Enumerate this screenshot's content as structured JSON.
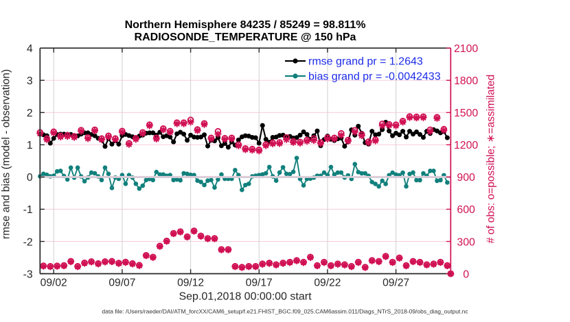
{
  "colors": {
    "background": "#ffffff",
    "rmse_line": "#000000",
    "bias_line": "#11807c",
    "obs_marker": "#d01053",
    "right_axis": "#d01053",
    "legend_text": "#1c2be8",
    "grid_horizontal": "#f7cfdf",
    "grid_vertical": "#d4d4d4",
    "zero_line": "#c9cbd3",
    "axis_color": "#262626",
    "title_color": "#000000",
    "footer_color": "#333333"
  },
  "chart_data": {
    "type": "line",
    "title": "Northern Hemisphere 84235 / 85249 = 98.811%",
    "subtitle": "RADIOSONDE_TEMPERATURE @ 150 hPa",
    "xlabel": "Sep.01,2018 00:00:00 start",
    "ylabel_left": "rmse and bias (model - observation)",
    "ylabel_right": "# of obs: o=possible; ∗=assimilated",
    "footer": "data file: /Users/raeder/DAI/ATM_forcXX/CAM6_setup/f.e21.FHIST_BGC.f09_025.CAM6assim.011/Diags_NTrS_2018-09/obs_diag_output.nc",
    "grid": true,
    "legend_position": "top-right-inside",
    "bins_total": 121,
    "bin_hours": 6,
    "x_axis": {
      "tick_labels": [
        "09/02",
        "09/07",
        "09/12",
        "09/17",
        "09/22",
        "09/27"
      ],
      "tick_bins": [
        4,
        24,
        44,
        64,
        84,
        104
      ],
      "xlim_bins": [
        0,
        120
      ]
    },
    "y_axis_left": {
      "tick_labels": [
        "-3",
        "-2",
        "-1",
        "0",
        "1",
        "2",
        "3",
        "4"
      ],
      "tick_values": [
        -3,
        -2,
        -1,
        0,
        1,
        2,
        3,
        4
      ],
      "ylim": [
        -3,
        4
      ]
    },
    "y_axis_right": {
      "tick_labels": [
        "0",
        "300",
        "600",
        "900",
        "1200",
        "1500",
        "1800",
        "2100"
      ],
      "tick_values": [
        0,
        300,
        600,
        900,
        1200,
        1500,
        1800,
        2100
      ],
      "ylim": [
        0,
        2100
      ]
    },
    "legend": [
      {
        "label": "rmse grand pr = 1.2643",
        "series": "rmse"
      },
      {
        "label": "bias grand pr = -0.0042433",
        "series": "bias"
      }
    ],
    "series": [
      {
        "name": "rmse",
        "axis": "left",
        "style": "line-dot",
        "values": [
          1.33,
          1.31,
          1.28,
          1.05,
          1.2,
          1.32,
          1.33,
          1.33,
          1.325,
          1.32,
          1.29,
          1.275,
          1.33,
          1.37,
          1.37,
          1.32,
          1.28,
          1.2,
          1.15,
          0.95,
          1.19,
          1.02,
          1.12,
          1.02,
          1.285,
          1.32,
          1.285,
          1.25,
          1.19,
          1.27,
          1.3,
          1.36,
          1.37,
          1.37,
          1.3,
          1.39,
          1.25,
          1.28,
          1.24,
          1.09,
          1.34,
          1.39,
          1.33,
          1.14,
          1.3,
          1.24,
          1.23,
          1.24,
          1.31,
          0.96,
          1.14,
          1.12,
          1.22,
          0.97,
          1.04,
          0.925,
          1.09,
          0.99,
          1.15,
          1.245,
          1.28,
          1.27,
          1.23,
          1.22,
          1.05,
          1.6,
          1.17,
          1.08,
          1.23,
          1.24,
          1.29,
          1.3,
          1.24,
          1.26,
          1.21,
          1.225,
          1.3,
          1.4,
          1.32,
          1.17,
          1.28,
          1.43,
          0.97,
          1.16,
          1.27,
          1.17,
          1.13,
          1.185,
          1.21,
          0.955,
          1.1,
          1.465,
          1.3,
          1.575,
          1.36,
          1.065,
          1.02,
          1.42,
          1.31,
          1.33,
          1.47,
          1.7,
          1.43,
          1.28,
          1.36,
          1.31,
          1.42,
          1.24,
          1.42,
          1.33,
          1.4,
          1.32,
          1.23,
          1.42,
          1.35,
          1.47,
          1.43,
          1.37,
          1.41,
          1.22,
          null
        ]
      },
      {
        "name": "bias",
        "axis": "left",
        "style": "line-dot",
        "values": [
          0.02,
          0.1,
          0.067,
          0.02,
          0.04,
          0.175,
          0.19,
          0.03,
          -0.075,
          0.29,
          -0.02,
          0.29,
          0.02,
          -0.13,
          -0.017,
          0.137,
          0.117,
          0.02,
          -0.094,
          0.29,
          0.098,
          -0.34,
          -0.017,
          -0.056,
          0.06,
          -0.21,
          0.06,
          -0.017,
          -0.21,
          -0.36,
          -0.27,
          -0.094,
          -0.063,
          -0.094,
          0.156,
          0.079,
          0.079,
          0.04,
          0.06,
          -0.094,
          -0.075,
          -0.102,
          0.117,
          0.098,
          0.067,
          0.06,
          -0.113,
          -0.152,
          -0.248,
          -0.113,
          -0.094,
          -0.325,
          -0.075,
          0.079,
          -0.056,
          -0.056,
          -0.056,
          0.213,
          0.06,
          -0.4,
          -0.25,
          -0.21,
          0.02,
          0.04,
          0.06,
          0.08,
          0.117,
          0.31,
          0.02,
          -0.113,
          0.14,
          0.3,
          0.1,
          0.09,
          0.16,
          0.59,
          -0.06,
          -0.26,
          -0.06,
          -0.05,
          -0.02,
          0.04,
          0.04,
          0.137,
          0.06,
          0.31,
          0.079,
          0.137,
          0.137,
          -0.017,
          0.05,
          -0.06,
          0.4,
          0.153,
          0.114,
          0.114,
          0.037,
          -0.156,
          -0.214,
          -0.291,
          -0.118,
          -0.214,
          0.056,
          0.134,
          0.076,
          0.056,
          0.134,
          -0.29,
          0.095,
          0.14,
          -0.098,
          -0.098,
          0.114,
          0.037,
          0.19,
          0.19,
          -0.118,
          -0.098,
          0.056,
          -0.17,
          null
        ]
      },
      {
        "name": "obs_assimilated",
        "axis": "right",
        "style": "asterisk",
        "values": [
          1305,
          70,
          1248,
          65,
          1311,
          69,
          1273,
          73,
          1278,
          112,
          1269,
          65,
          1326,
          97,
          1258,
          109,
          1330,
          91,
          1248,
          109,
          1273,
          112,
          1248,
          95,
          1318,
          105,
          1204,
          91,
          1251,
          75,
          1305,
          167,
          1377,
          151,
          1254,
          254,
          1339,
          301,
          1317,
          372,
          1396,
          388,
          1396,
          341,
          1411,
          395,
          1332,
          348,
          1389,
          325,
          1254,
          325,
          1300,
          222,
          1251,
          222,
          1254,
          65,
          1191,
          57,
          1155,
          65,
          1150,
          65,
          1143,
          88,
          1192,
          96,
          1209,
          81,
          1212,
          96,
          1248,
          104,
          1222,
          120,
          1216,
          104,
          1234,
          151,
          1240,
          73,
          1212,
          104,
          1254,
          73,
          1254,
          88,
          1288,
          81,
          1234,
          65,
          1318,
          104,
          1284,
          57,
          1219,
          120,
          1237,
          112,
          1377,
          159,
          1380,
          104,
          1377,
          144,
          1411,
          73,
          1453,
          112,
          1450,
          104,
          1452,
          81,
          1323,
          88,
          1446,
          104,
          1335,
          73,
          0
        ]
      },
      {
        "name": "obs_possible",
        "axis": "right",
        "style": "circle",
        "values": [
          1315,
          74,
          1258,
          69,
          1321,
          73,
          1283,
          77,
          1288,
          116,
          1279,
          69,
          1336,
          101,
          1268,
          113,
          1340,
          95,
          1258,
          113,
          1283,
          116,
          1258,
          99,
          1328,
          109,
          1214,
          95,
          1261,
          79,
          1315,
          171,
          1387,
          155,
          1264,
          258,
          1351,
          305,
          1327,
          376,
          1406,
          392,
          1406,
          345,
          1431,
          399,
          1342,
          352,
          1399,
          329,
          1264,
          329,
          1325,
          226,
          1261,
          226,
          1264,
          69,
          1201,
          61,
          1165,
          69,
          1160,
          69,
          1153,
          92,
          1202,
          100,
          1219,
          85,
          1222,
          100,
          1268,
          108,
          1232,
          124,
          1226,
          108,
          1244,
          155,
          1258,
          77,
          1222,
          108,
          1266,
          77,
          1264,
          92,
          1306,
          85,
          1244,
          69,
          1335,
          108,
          1297,
          61,
          1229,
          124,
          1247,
          116,
          1395,
          163,
          1390,
          108,
          1387,
          148,
          1421,
          77,
          1463,
          116,
          1460,
          108,
          1462,
          85,
          1340,
          92,
          1456,
          108,
          1345,
          77,
          0
        ]
      }
    ]
  }
}
